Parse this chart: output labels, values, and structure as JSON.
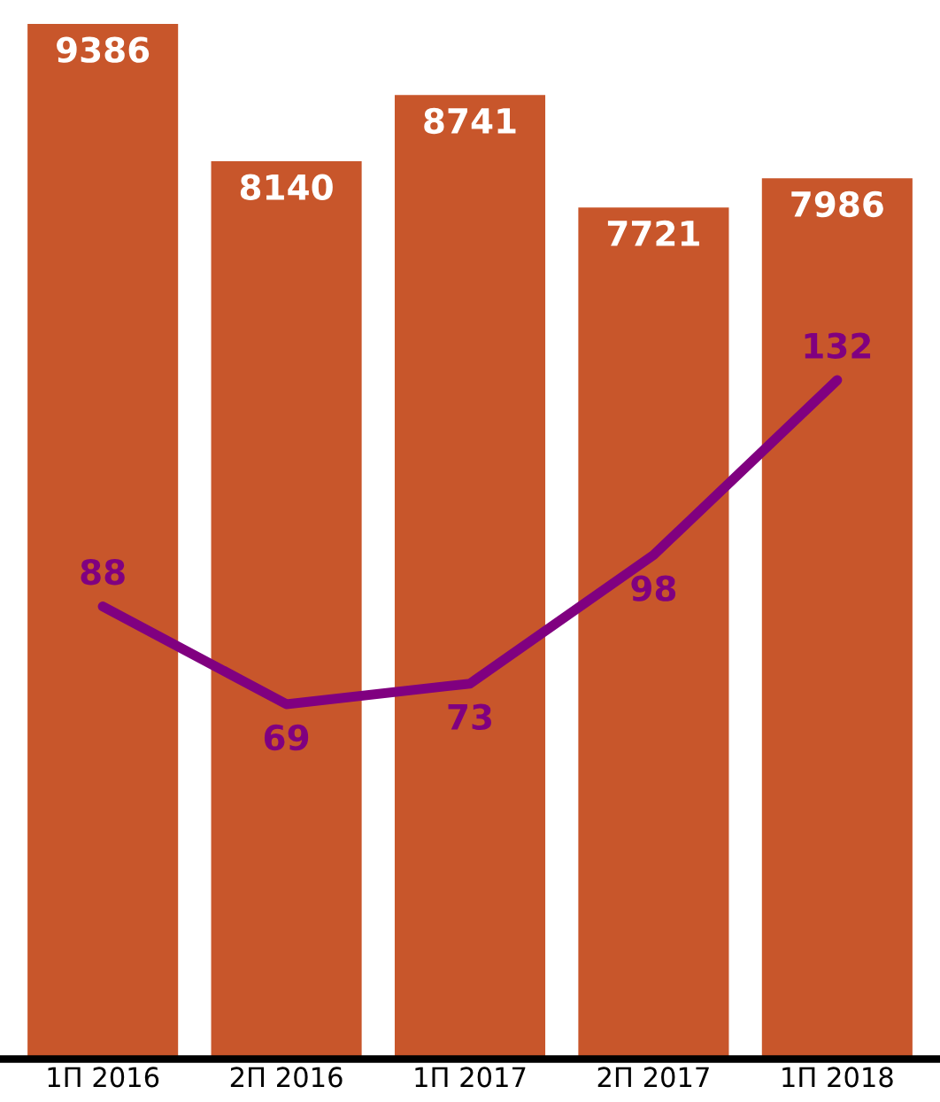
{
  "chart_data": {
    "type": "bar",
    "categories": [
      "1П 2016",
      "2П 2016",
      "1П 2017",
      "2П 2017",
      "1П 2018"
    ],
    "series": [
      {
        "color": "#c8562b",
        "values": [
          9386,
          8140,
          8741,
          7721,
          7986
        ]
      },
      {
        "type": "line",
        "axis": "y2",
        "color": "#800080",
        "values": [
          88,
          69,
          73,
          98,
          132
        ]
      }
    ],
    "data_labels": true,
    "grid": false,
    "legend": false,
    "tick_labels": "x"
  }
}
